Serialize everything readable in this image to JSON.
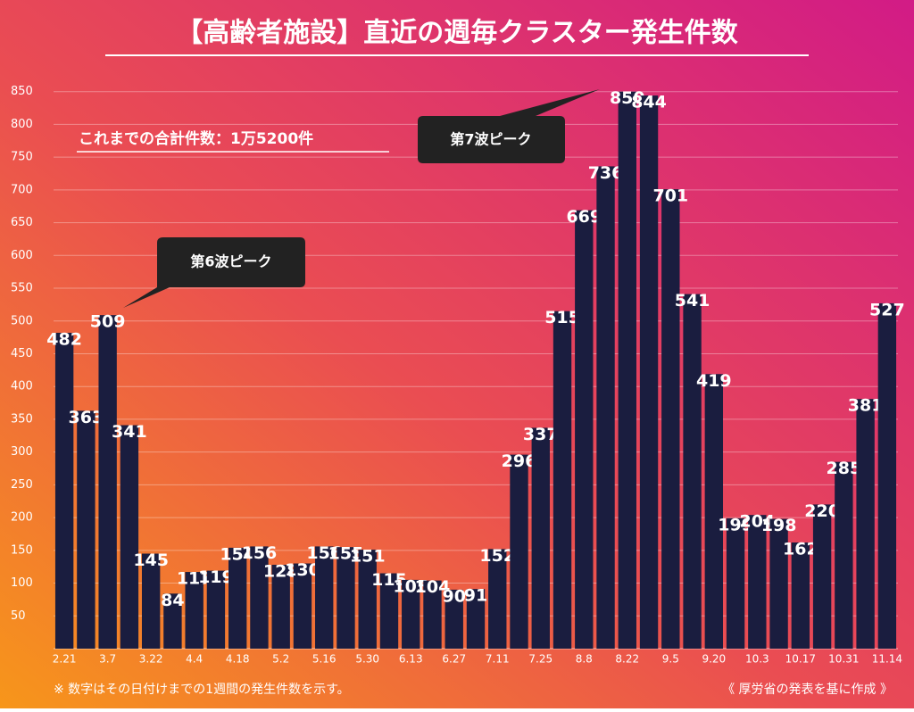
{
  "chart_data": {
    "type": "bar",
    "title": "【高齢者施設】直近の週毎クラスター発生件数",
    "annotations": [
      "これまでの合計件数：1万5200件",
      "第6波ピーク",
      "第7波ピーク"
    ],
    "notes": [
      "※ 数字はその日付けまでの1週間の発生件数を示す。",
      "《 厚労省の発表を基に作成 》"
    ],
    "categories": [
      "2.21",
      null,
      "3.7",
      null,
      "3.22",
      null,
      "4.4",
      null,
      "4.18",
      null,
      "5.2",
      null,
      "5.16",
      null,
      "5.30",
      null,
      "6.13",
      null,
      "6.27",
      null,
      "7.11",
      null,
      "7.25",
      null,
      "8.8",
      null,
      "8.22",
      null,
      "9.5",
      null,
      "9.20",
      null,
      "10.3",
      null,
      "10.17",
      null,
      "10.31",
      null,
      "11.14"
    ],
    "values": [
      482,
      363,
      509,
      341,
      145,
      84,
      117,
      119,
      154,
      156,
      128,
      130,
      156,
      155,
      151,
      115,
      105,
      104,
      90,
      91,
      152,
      296,
      337,
      515,
      669,
      736,
      850,
      844,
      701,
      541,
      419,
      199,
      204,
      198,
      162,
      220,
      285,
      381,
      527
    ],
    "color": "#1a1d3f",
    "ylim": [
      0,
      870
    ],
    "yticks": [
      50,
      100,
      150,
      200,
      250,
      300,
      350,
      400,
      450,
      500,
      550,
      600,
      650,
      700,
      750,
      800,
      850
    ],
    "grid": true
  }
}
